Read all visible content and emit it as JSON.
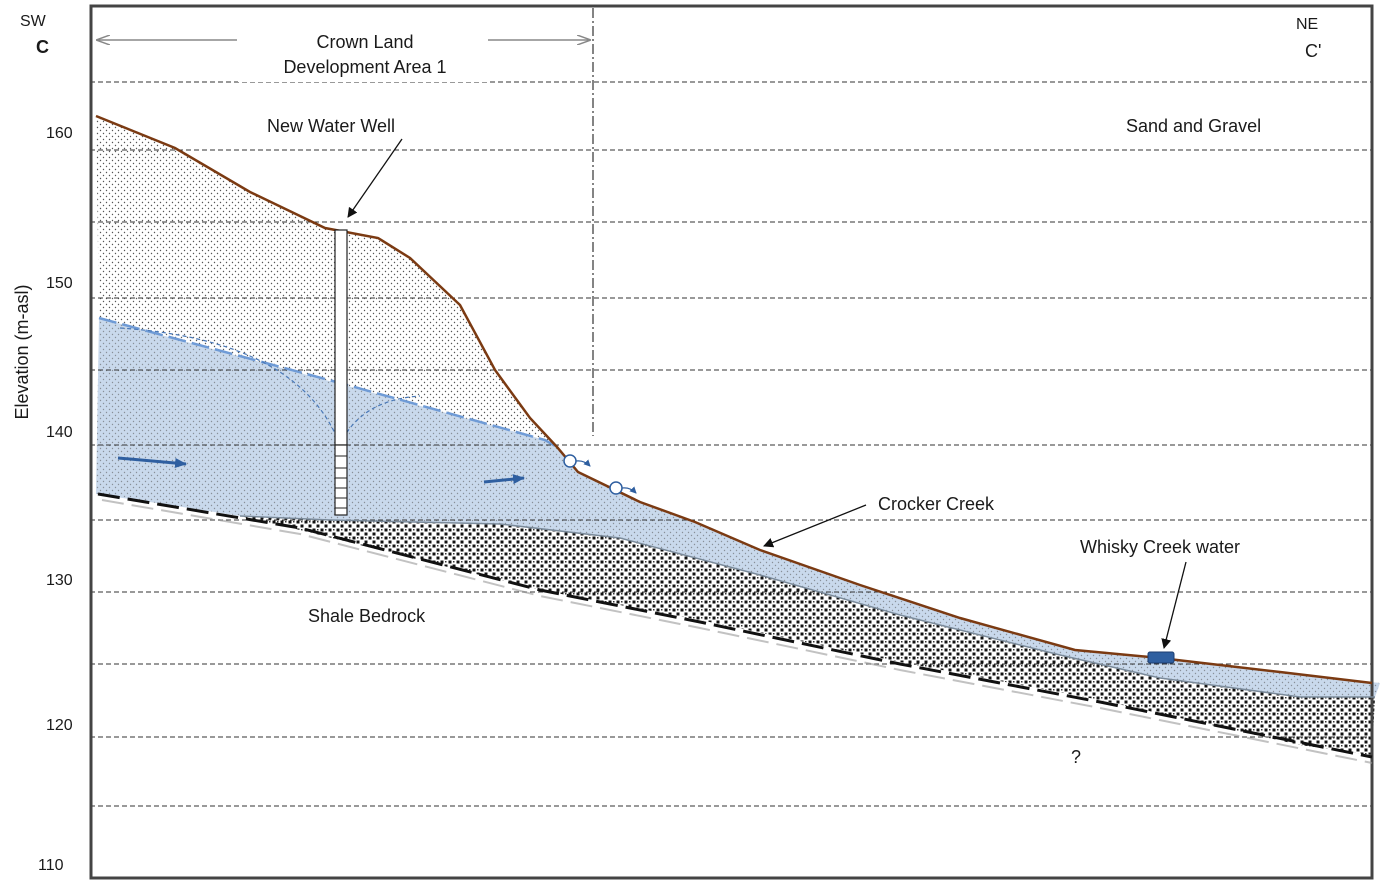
{
  "direction": {
    "left_direction": "SW",
    "left_section": "C",
    "right_direction": "NE",
    "right_section": "C'"
  },
  "area": {
    "line1": "Crown Land",
    "line2": "Development Area 1"
  },
  "y_axis": {
    "label": "Elevation (m-asl)",
    "ticks": [
      "160",
      "150",
      "140",
      "130",
      "120",
      "110"
    ]
  },
  "labels": {
    "new_well": "New Water Well",
    "sand_gravel": "Sand and Gravel",
    "crocker_creek": "Crocker Creek",
    "whisky_creek": "Whisky Creek water",
    "shale": "Shale Bedrock",
    "unknown": "?"
  },
  "colors": {
    "ground_surface": "#7b3a12",
    "water_table": "#6f9bd6",
    "saturated_zone": "#c9d9ec",
    "flow_arrow": "#2f5fa0",
    "grid": "#333333"
  }
}
